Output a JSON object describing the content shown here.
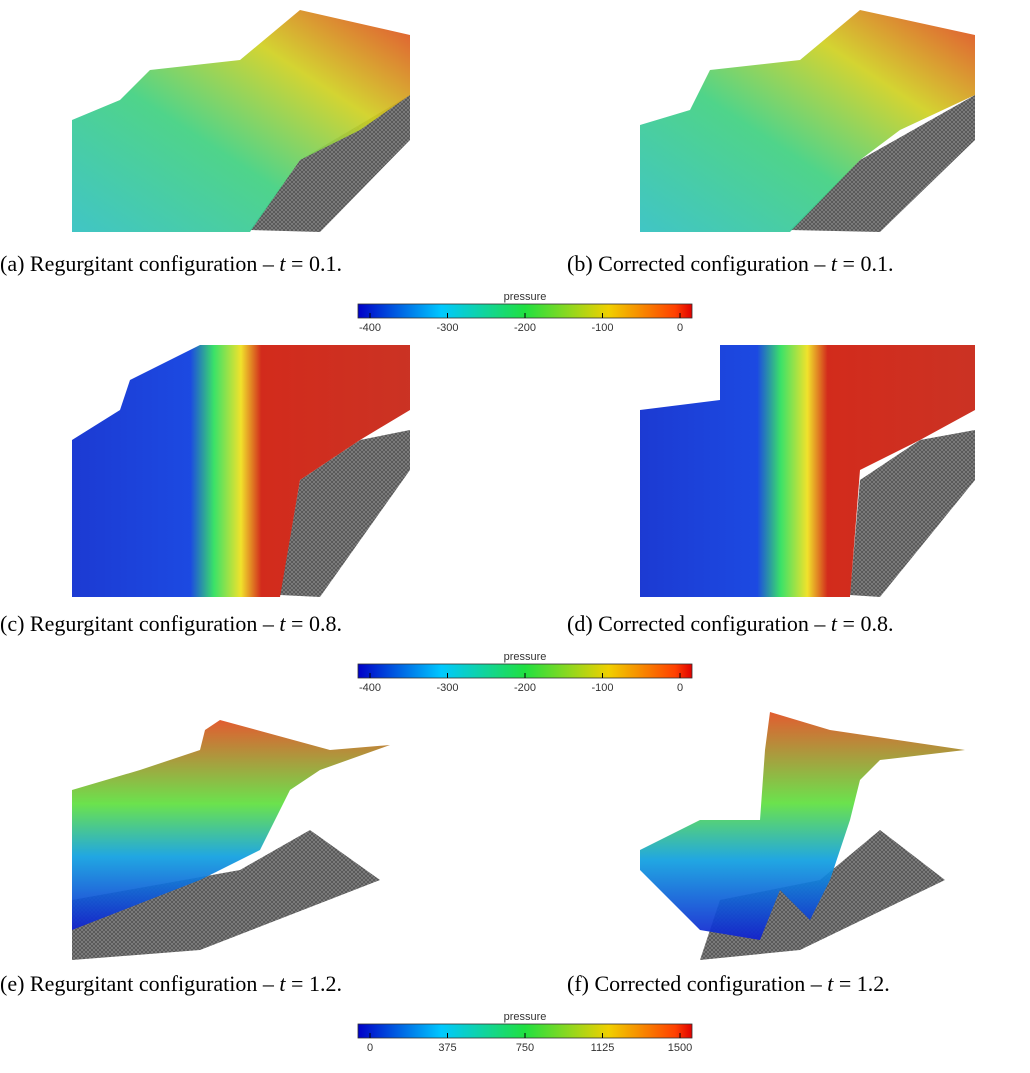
{
  "panels": [
    {
      "caption": {
        "label": "(a)",
        "text": "Regurgitant configuration –",
        "var": "t",
        "eq": "= 0.1."
      }
    },
    {
      "caption": {
        "label": "(b)",
        "text": "Corrected configuration –",
        "var": "t",
        "eq": "= 0.1."
      }
    },
    {
      "caption": {
        "label": "(c)",
        "text": "Regurgitant configuration –",
        "var": "t",
        "eq": "= 0.8."
      }
    },
    {
      "caption": {
        "label": "(d)",
        "text": "Corrected configuration –",
        "var": "t",
        "eq": "= 0.8."
      }
    },
    {
      "caption": {
        "label": "(e)",
        "text": "Regurgitant configuration –",
        "var": "t",
        "eq": "= 1.2."
      }
    },
    {
      "caption": {
        "label": "(f)",
        "text": "Corrected configuration –",
        "var": "t",
        "eq": "= 1.2."
      }
    }
  ],
  "colorbars": [
    {
      "title": "pressure",
      "ticks": [
        -400,
        -300,
        -200,
        -100,
        0
      ]
    },
    {
      "title": "pressure",
      "ticks": [
        -400,
        -300,
        -200,
        -100,
        0
      ]
    },
    {
      "title": "pressure",
      "ticks": [
        0,
        375,
        750,
        1125,
        1500
      ]
    }
  ]
}
